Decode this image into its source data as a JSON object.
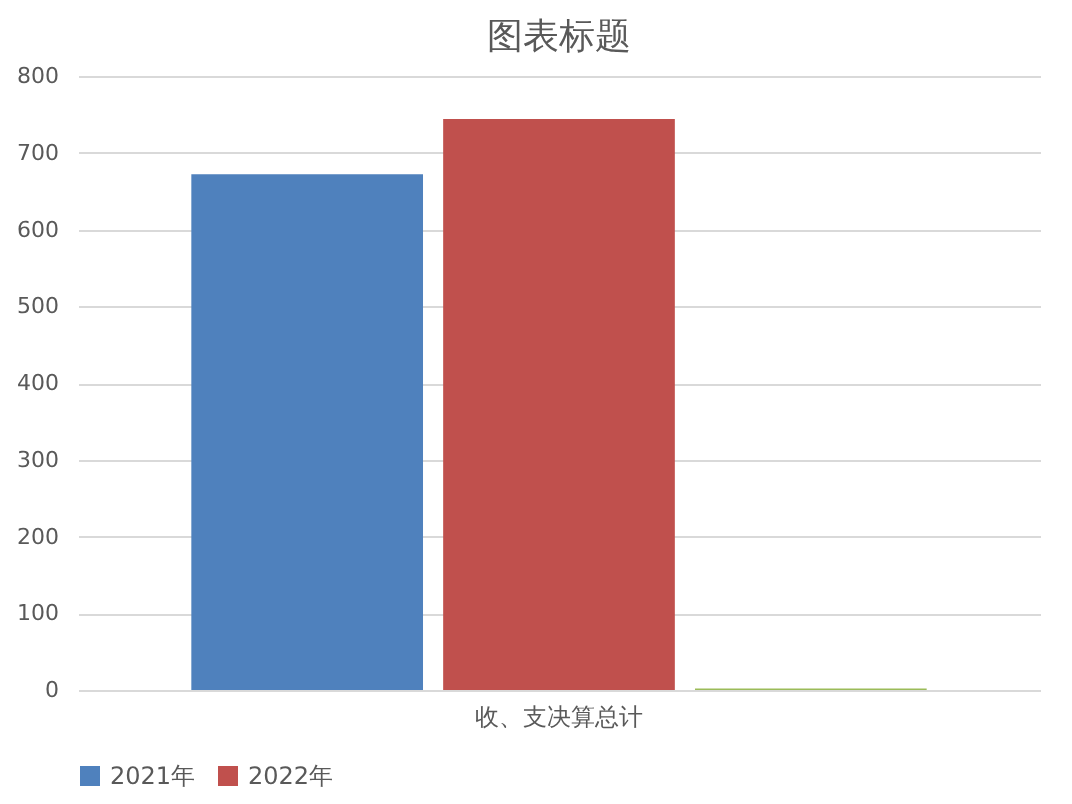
{
  "chart_data": {
    "type": "bar",
    "title": "图表标题",
    "categories": [
      "收、支决算总计"
    ],
    "series": [
      {
        "name": "2021年",
        "color": "#4f81bd",
        "values": [
          672
        ]
      },
      {
        "name": "2022年",
        "color": "#c0504d",
        "values": [
          744
        ]
      },
      {
        "color": "#9bbb59",
        "values": [
          2
        ]
      }
    ],
    "ylim": [
      0,
      800
    ],
    "yticks": [
      0,
      100,
      200,
      300,
      400,
      500,
      600,
      700,
      800
    ],
    "grid": "y",
    "legend": "bottom"
  }
}
